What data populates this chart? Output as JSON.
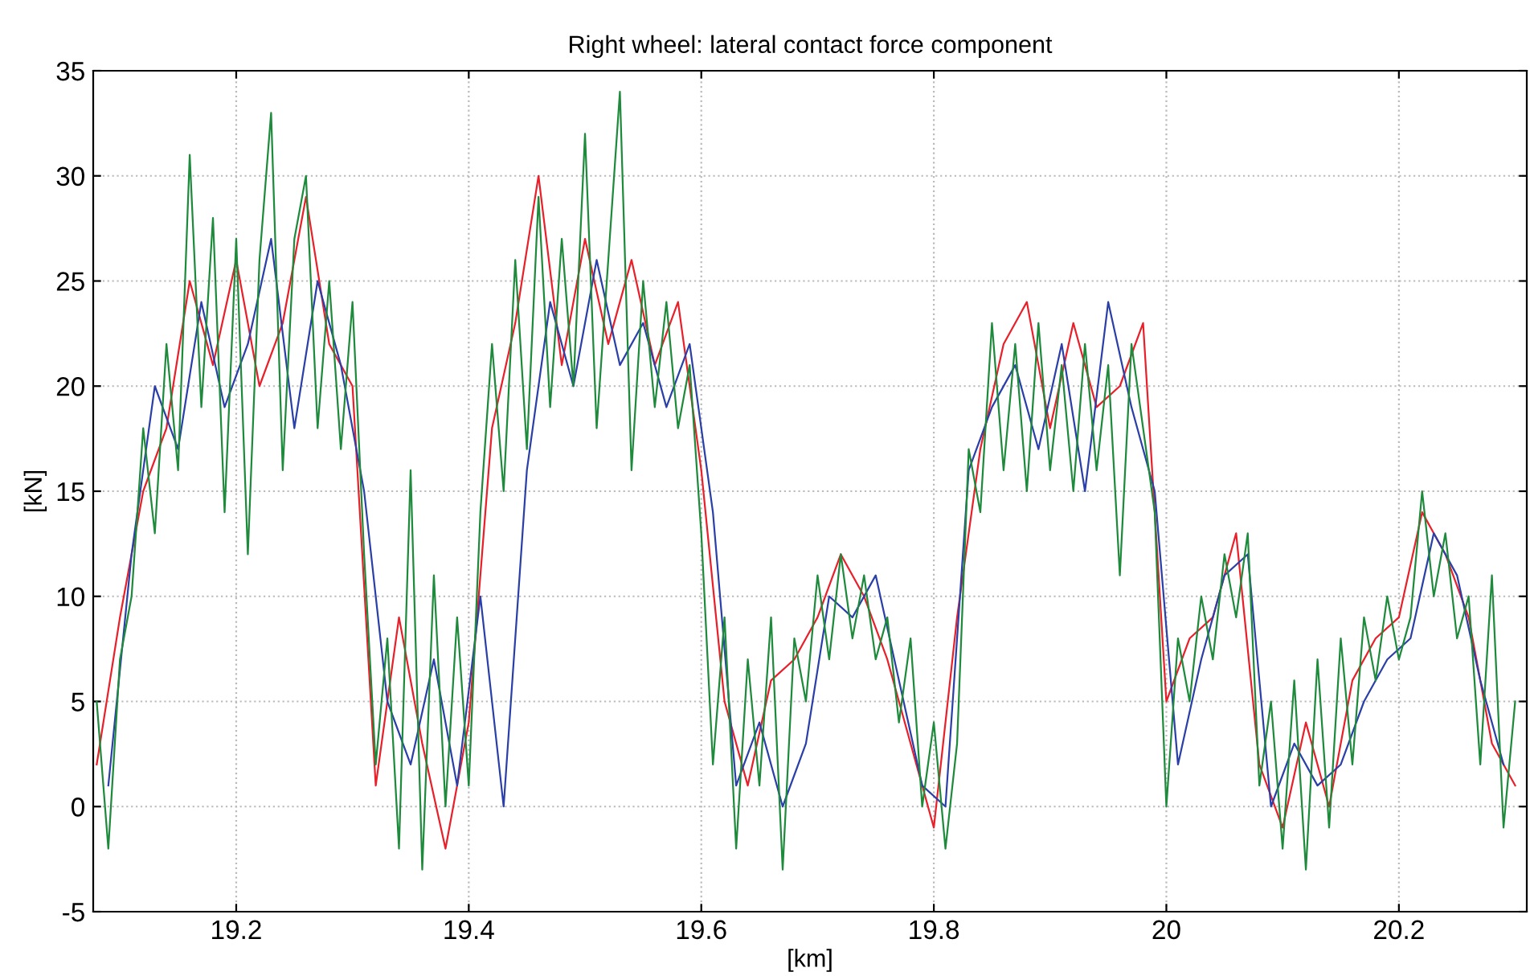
{
  "chart_data": {
    "type": "line",
    "title": "Right wheel: lateral contact force component",
    "xlabel": "[km]",
    "ylabel": "[kN]",
    "xlim": [
      19.077,
      20.31
    ],
    "ylim": [
      -5,
      35
    ],
    "xticks": [
      19.2,
      19.4,
      19.6,
      19.8,
      20,
      20.2
    ],
    "yticks": [
      -5,
      0,
      5,
      10,
      15,
      20,
      25,
      30,
      35
    ],
    "grid": true,
    "line_style": "solid",
    "series": [
      {
        "color": "#e8202a",
        "x": [
          19.08,
          19.1,
          19.12,
          19.14,
          19.16,
          19.18,
          19.2,
          19.22,
          19.24,
          19.26,
          19.28,
          19.3,
          19.32,
          19.34,
          19.36,
          19.38,
          19.4,
          19.42,
          19.44,
          19.46,
          19.48,
          19.5,
          19.52,
          19.54,
          19.56,
          19.58,
          19.6,
          19.62,
          19.64,
          19.66,
          19.68,
          19.7,
          19.72,
          19.74,
          19.76,
          19.78,
          19.8,
          19.82,
          19.84,
          19.86,
          19.88,
          19.9,
          19.92,
          19.94,
          19.96,
          19.98,
          20.0,
          20.02,
          20.04,
          20.06,
          20.08,
          20.1,
          20.12,
          20.14,
          20.16,
          20.18,
          20.2,
          20.22,
          20.24,
          20.26,
          20.28,
          20.3
        ],
        "values": [
          2,
          9,
          15,
          18,
          25,
          21,
          26,
          20,
          23,
          29,
          22,
          20,
          1,
          9,
          3,
          -2,
          4,
          18,
          23,
          30,
          21,
          27,
          22,
          26,
          21,
          24,
          16,
          5,
          1,
          6,
          7,
          9,
          12,
          10,
          7,
          3,
          -1,
          9,
          17,
          22,
          24,
          18,
          23,
          19,
          20,
          23,
          5,
          8,
          9,
          13,
          2,
          -1,
          4,
          0,
          6,
          8,
          9,
          14,
          12,
          9,
          3,
          1
        ]
      },
      {
        "color": "#2a3fa8",
        "x": [
          19.09,
          19.11,
          19.13,
          19.15,
          19.17,
          19.19,
          19.21,
          19.23,
          19.25,
          19.27,
          19.29,
          19.31,
          19.33,
          19.35,
          19.37,
          19.39,
          19.41,
          19.43,
          19.45,
          19.47,
          19.49,
          19.51,
          19.53,
          19.55,
          19.57,
          19.59,
          19.61,
          19.63,
          19.65,
          19.67,
          19.69,
          19.71,
          19.73,
          19.75,
          19.77,
          19.79,
          19.81,
          19.83,
          19.85,
          19.87,
          19.89,
          19.91,
          19.93,
          19.95,
          19.97,
          19.99,
          20.01,
          20.03,
          20.05,
          20.07,
          20.09,
          20.11,
          20.13,
          20.15,
          20.17,
          20.19,
          20.21,
          20.23,
          20.25,
          20.27,
          20.29
        ],
        "values": [
          1,
          12,
          20,
          17,
          24,
          19,
          22,
          27,
          18,
          25,
          21,
          15,
          5,
          2,
          7,
          1,
          10,
          0,
          16,
          24,
          20,
          26,
          21,
          23,
          19,
          22,
          14,
          1,
          4,
          0,
          3,
          10,
          9,
          11,
          6,
          1,
          0,
          16,
          19,
          21,
          17,
          22,
          15,
          24,
          19,
          15,
          2,
          7,
          11,
          12,
          0,
          3,
          1,
          2,
          5,
          7,
          8,
          13,
          11,
          6,
          2
        ]
      },
      {
        "color": "#1e8a3c",
        "x": [
          19.08,
          19.09,
          19.1,
          19.11,
          19.12,
          19.13,
          19.14,
          19.15,
          19.16,
          19.17,
          19.18,
          19.19,
          19.2,
          19.21,
          19.22,
          19.23,
          19.24,
          19.25,
          19.26,
          19.27,
          19.28,
          19.29,
          19.3,
          19.31,
          19.32,
          19.33,
          19.34,
          19.35,
          19.36,
          19.37,
          19.38,
          19.39,
          19.4,
          19.41,
          19.42,
          19.43,
          19.44,
          19.45,
          19.46,
          19.47,
          19.48,
          19.49,
          19.5,
          19.51,
          19.52,
          19.53,
          19.54,
          19.55,
          19.56,
          19.57,
          19.58,
          19.59,
          19.6,
          19.61,
          19.62,
          19.63,
          19.64,
          19.65,
          19.66,
          19.67,
          19.68,
          19.69,
          19.7,
          19.71,
          19.72,
          19.73,
          19.74,
          19.75,
          19.76,
          19.77,
          19.78,
          19.79,
          19.8,
          19.81,
          19.82,
          19.83,
          19.84,
          19.85,
          19.86,
          19.87,
          19.88,
          19.89,
          19.9,
          19.91,
          19.92,
          19.93,
          19.94,
          19.95,
          19.96,
          19.97,
          19.98,
          19.99,
          20.0,
          20.01,
          20.02,
          20.03,
          20.04,
          20.05,
          20.06,
          20.07,
          20.08,
          20.09,
          20.1,
          20.11,
          20.12,
          20.13,
          20.14,
          20.15,
          20.16,
          20.17,
          20.18,
          20.19,
          20.2,
          20.21,
          20.22,
          20.23,
          20.24,
          20.25,
          20.26,
          20.27,
          20.28,
          20.29,
          20.3
        ],
        "values": [
          5,
          -2,
          7,
          10,
          18,
          13,
          22,
          16,
          31,
          19,
          28,
          14,
          27,
          12,
          26,
          33,
          16,
          27,
          30,
          18,
          25,
          17,
          24,
          12,
          2,
          8,
          -2,
          16,
          -3,
          11,
          0,
          9,
          1,
          14,
          22,
          15,
          26,
          17,
          29,
          19,
          27,
          20,
          32,
          18,
          26,
          34,
          16,
          25,
          19,
          24,
          18,
          21,
          13,
          2,
          9,
          -2,
          7,
          1,
          9,
          -3,
          8,
          5,
          11,
          7,
          12,
          8,
          11,
          7,
          9,
          4,
          8,
          0,
          4,
          -2,
          3,
          17,
          14,
          23,
          16,
          22,
          15,
          23,
          16,
          21,
          15,
          22,
          16,
          21,
          11,
          22,
          18,
          14,
          0,
          8,
          5,
          10,
          7,
          12,
          9,
          13,
          1,
          5,
          -2,
          6,
          -3,
          7,
          -1,
          8,
          2,
          9,
          6,
          10,
          7,
          9,
          15,
          10,
          13,
          8,
          10,
          2,
          11,
          -1,
          5
        ]
      }
    ]
  }
}
